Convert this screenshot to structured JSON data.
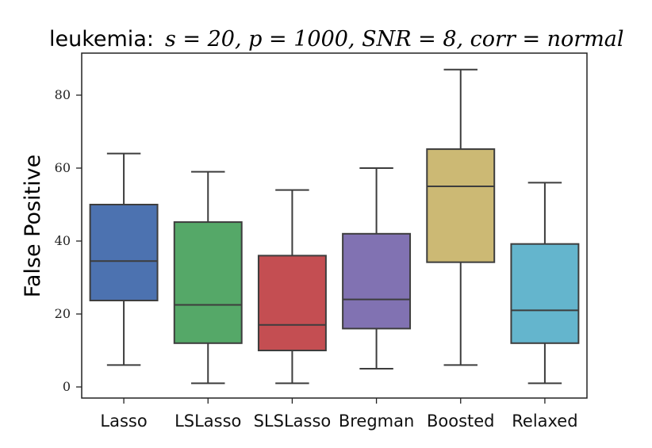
{
  "chart_data": {
    "type": "boxplot",
    "title_prefix": "leukemia:",
    "title_math": "s = 20, p = 1000, SNR = 8, corr = normal",
    "xlabel": "",
    "ylabel": "False Positive",
    "ylim": [
      -3,
      91
    ],
    "yticks": [
      0,
      20,
      40,
      60,
      80
    ],
    "categories": [
      "Lasso",
      "LSLasso",
      "SLSLasso",
      "Bregman",
      "Boosted",
      "Relaxed"
    ],
    "colors": [
      "#4c72b0",
      "#55a868",
      "#c44e52",
      "#8172b2",
      "#ccb974",
      "#64b5cd"
    ],
    "boxes": [
      {
        "name": "Lasso",
        "whisker_low": 6,
        "q1": 23.7,
        "median": 34.5,
        "q3": 50,
        "whisker_high": 64
      },
      {
        "name": "LSLasso",
        "whisker_low": 1,
        "q1": 12,
        "median": 22.5,
        "q3": 45.2,
        "whisker_high": 59
      },
      {
        "name": "SLSLasso",
        "whisker_low": 1,
        "q1": 10,
        "median": 17,
        "q3": 36,
        "whisker_high": 54
      },
      {
        "name": "Bregman",
        "whisker_low": 5,
        "q1": 16,
        "median": 24,
        "q3": 42,
        "whisker_high": 60
      },
      {
        "name": "Boosted",
        "whisker_low": 6,
        "q1": 34.2,
        "median": 55,
        "q3": 65.2,
        "whisker_high": 87
      },
      {
        "name": "Relaxed",
        "whisker_low": 1,
        "q1": 12,
        "median": 21,
        "q3": 39.2,
        "whisker_high": 56
      }
    ]
  }
}
